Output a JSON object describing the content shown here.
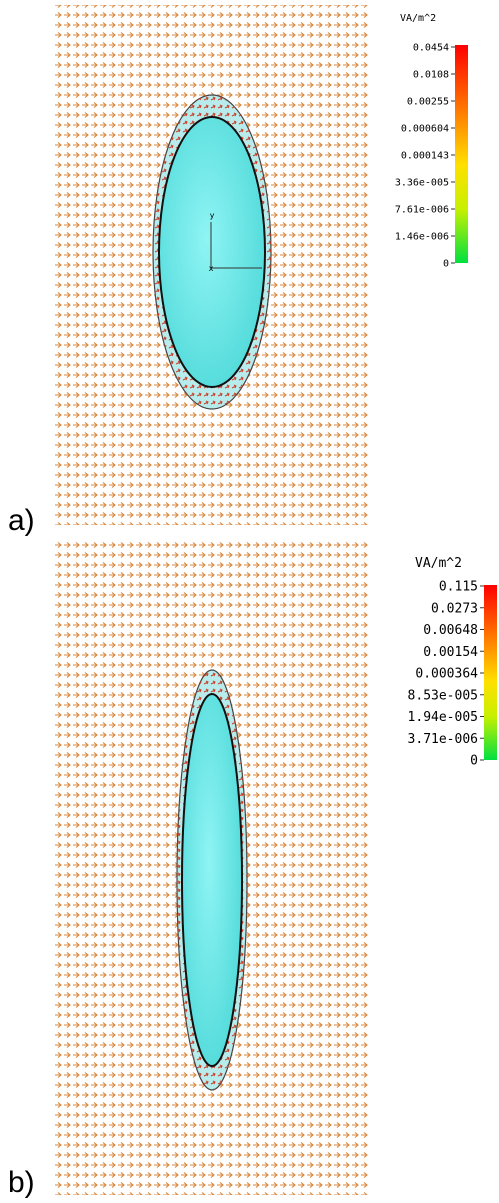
{
  "panels": [
    {
      "label": "a)",
      "unit": "VA/m^2",
      "axis_labels": {
        "y": "y",
        "x": "x"
      },
      "scale_labels": [
        "0.0454",
        "0.0108",
        "0.00255",
        "0.000604",
        "0.000143",
        "3.36e-005",
        "7.61e-006",
        "1.46e-006",
        "0"
      ]
    },
    {
      "label": "b)",
      "unit": "VA/m^2",
      "scale_labels": [
        "0.115",
        "0.0273",
        "0.00648",
        "0.00154",
        "0.000364",
        "8.53e-005",
        "1.94e-005",
        "3.71e-006",
        "0"
      ]
    }
  ]
}
